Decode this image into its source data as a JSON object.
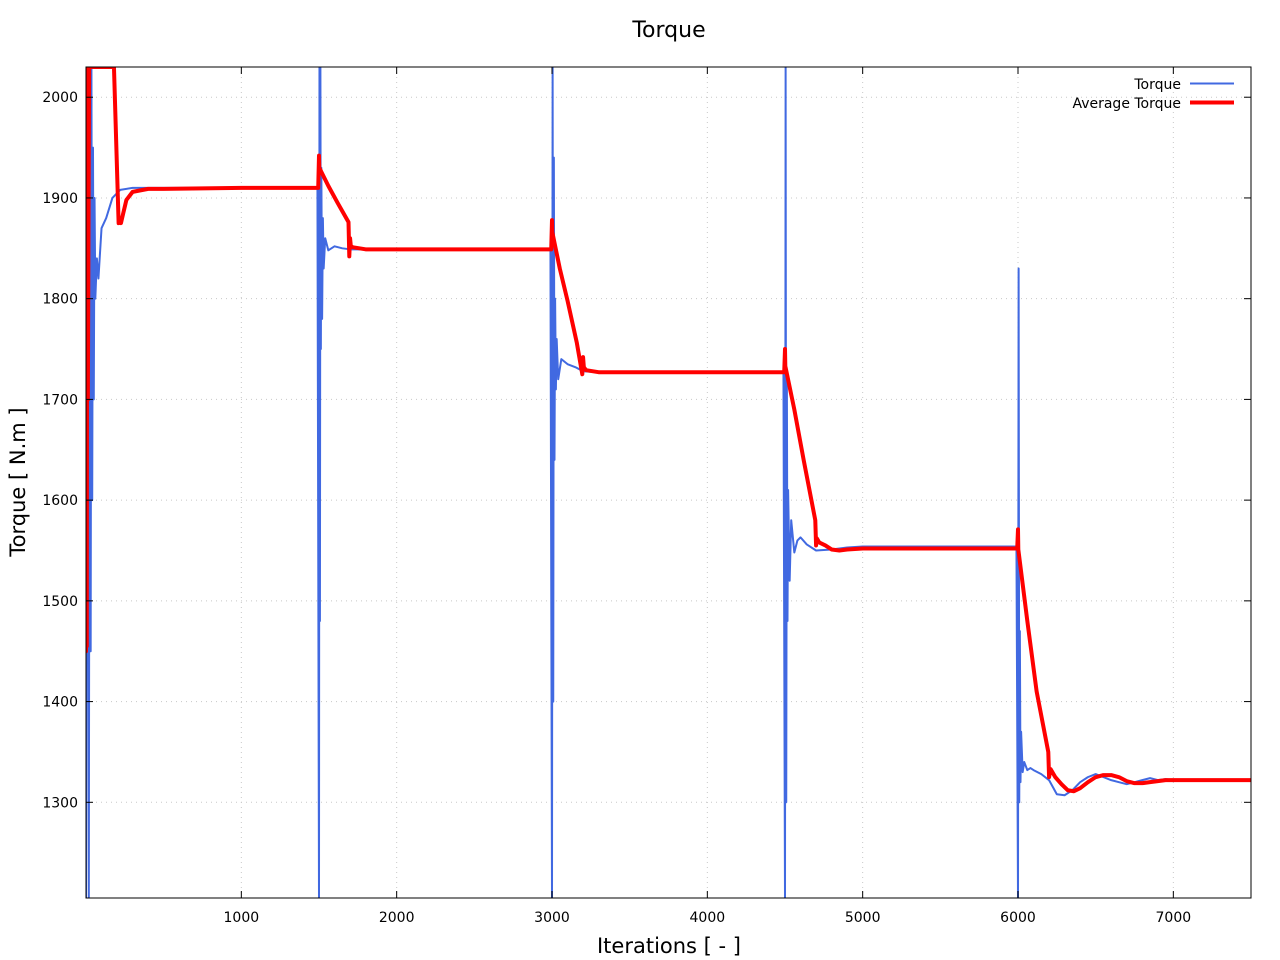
{
  "chart_data": {
    "type": "line",
    "title": "Torque",
    "xlabel": "Iterations [ - ]",
    "ylabel": "Torque [ N.m ]",
    "xlim": [
      0,
      7500
    ],
    "ylim": [
      1205,
      2030
    ],
    "x_ticks": [
      1000,
      2000,
      3000,
      4000,
      5000,
      6000,
      7000
    ],
    "y_ticks": [
      1300,
      1400,
      1500,
      1600,
      1700,
      1800,
      1900,
      2000
    ],
    "grid": true,
    "legend_position": "top-right",
    "series": [
      {
        "name": "Torque",
        "color": "#4169e1",
        "width": 2,
        "x": [
          0,
          10,
          18,
          25,
          30,
          35,
          40,
          45,
          50,
          55,
          60,
          70,
          80,
          100,
          130,
          170,
          220,
          300,
          500,
          1000,
          1490,
          1500,
          1503,
          1506,
          1509,
          1512,
          1515,
          1520,
          1525,
          1530,
          1540,
          1560,
          1600,
          1650,
          1700,
          2000,
          2500,
          2990,
          3000,
          3004,
          3008,
          3012,
          3016,
          3020,
          3025,
          3030,
          3040,
          3060,
          3100,
          3150,
          3200,
          3300,
          3600,
          4000,
          4490,
          4500,
          4504,
          4508,
          4512,
          4516,
          4520,
          4530,
          4540,
          4560,
          4580,
          4600,
          4640,
          4700,
          4800,
          4900,
          5000,
          5500,
          5990,
          6000,
          6004,
          6008,
          6012,
          6016,
          6020,
          6030,
          6040,
          6060,
          6080,
          6100,
          6150,
          6200,
          6250,
          6300,
          6350,
          6400,
          6450,
          6500,
          6550,
          6600,
          6650,
          6700,
          6750,
          6800,
          6850,
          6900,
          6950,
          7000,
          7200,
          7500
        ],
        "y": [
          1205,
          2030,
          1205,
          2030,
          1450,
          2030,
          1600,
          1950,
          1700,
          1900,
          1800,
          1840,
          1820,
          1870,
          1880,
          1900,
          1908,
          1910,
          1910,
          1910,
          1910,
          1205,
          2030,
          1480,
          2030,
          1750,
          1930,
          1780,
          1880,
          1830,
          1860,
          1848,
          1852,
          1850,
          1849,
          1849,
          1849,
          1849,
          1205,
          2030,
          1400,
          1940,
          1640,
          1800,
          1710,
          1760,
          1720,
          1740,
          1735,
          1732,
          1728,
          1727,
          1727,
          1727,
          1727,
          1205,
          2030,
          1300,
          1720,
          1480,
          1610,
          1520,
          1580,
          1548,
          1560,
          1563,
          1556,
          1550,
          1551,
          1553,
          1554,
          1554,
          1554,
          1205,
          1830,
          1300,
          1470,
          1320,
          1370,
          1330,
          1340,
          1332,
          1334,
          1332,
          1328,
          1322,
          1308,
          1307,
          1312,
          1320,
          1325,
          1328,
          1325,
          1322,
          1320,
          1318,
          1320,
          1322,
          1324,
          1322,
          1323,
          1322,
          1322,
          1322
        ]
      },
      {
        "name": "Average Torque",
        "color": "#ff0000",
        "width": 4,
        "x": [
          0,
          2,
          5,
          8,
          12,
          20,
          30,
          40,
          60,
          90,
          130,
          180,
          210,
          215,
          225,
          240,
          260,
          300,
          400,
          500,
          1000,
          1495,
          1500,
          1502,
          1560,
          1620,
          1690,
          1695,
          1700,
          1705,
          1720,
          1800,
          2500,
          2995,
          3000,
          3002,
          3050,
          3100,
          3160,
          3195,
          3200,
          3205,
          3220,
          3300,
          3600,
          4495,
          4500,
          4502,
          4560,
          4620,
          4695,
          4700,
          4705,
          4720,
          4760,
          4800,
          4850,
          4900,
          5000,
          5995,
          6000,
          6002,
          6060,
          6120,
          6195,
          6200,
          6210,
          6240,
          6280,
          6320,
          6360,
          6400,
          6450,
          6500,
          6550,
          6600,
          6650,
          6700,
          6750,
          6800,
          6850,
          6900,
          6950,
          7000,
          7200,
          7500
        ],
        "y": [
          1450,
          2030,
          1455,
          2030,
          1700,
          2030,
          2030,
          2030,
          2030,
          2030,
          2030,
          2030,
          1875,
          1880,
          1875,
          1885,
          1898,
          1906,
          1909,
          1909,
          1910,
          1910,
          1942,
          1930,
          1912,
          1895,
          1876,
          1842,
          1860,
          1852,
          1851,
          1849,
          1849,
          1849,
          1878,
          1866,
          1830,
          1798,
          1756,
          1725,
          1742,
          1732,
          1729,
          1727,
          1727,
          1727,
          1750,
          1733,
          1690,
          1640,
          1580,
          1555,
          1562,
          1558,
          1555,
          1551,
          1550,
          1551,
          1552,
          1552,
          1571,
          1551,
          1480,
          1410,
          1350,
          1325,
          1333,
          1325,
          1318,
          1312,
          1311,
          1314,
          1320,
          1325,
          1327,
          1327,
          1325,
          1321,
          1319,
          1319,
          1320,
          1321,
          1322,
          1322,
          1322,
          1322
        ]
      }
    ]
  }
}
